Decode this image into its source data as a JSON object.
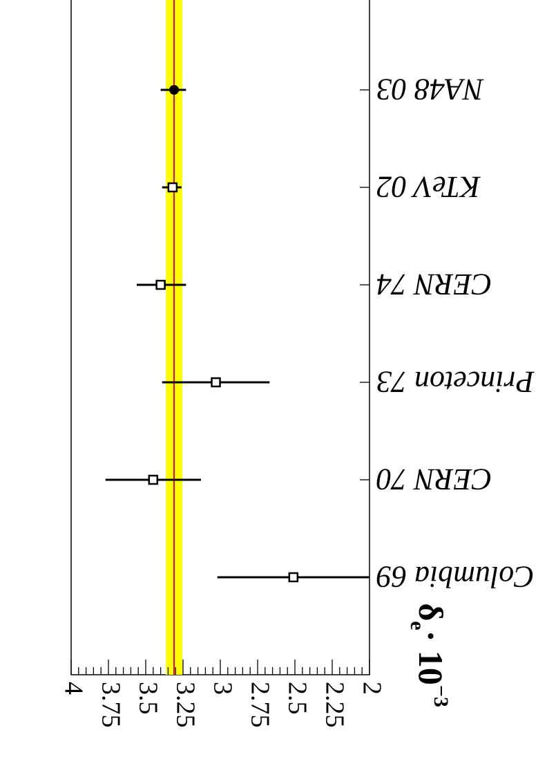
{
  "chart_data": {
    "type": "scatter",
    "orientation": "horizontal-error-bars, figure rotated 180 degrees",
    "xlabel": "δ",
    "xlabel_subscript": "e",
    "xlabel_multiplier": "· 10",
    "xlabel_exponent": "−3",
    "xlim": [
      2,
      4
    ],
    "x_ticks": [
      {
        "value": 4,
        "label": "4"
      },
      {
        "value": 3.75,
        "label": "3.75"
      },
      {
        "value": 3.5,
        "label": "3.5"
      },
      {
        "value": 3.25,
        "label": "3.25"
      },
      {
        "value": 3,
        "label": "3"
      },
      {
        "value": 2.75,
        "label": "2.75"
      },
      {
        "value": 2.5,
        "label": "2.5"
      },
      {
        "value": 2.25,
        "label": "2.25"
      },
      {
        "value": 2,
        "label": "2"
      }
    ],
    "average": {
      "value": 3.31,
      "band_low": 3.255,
      "band_high": 3.365,
      "band_color": "#ffff00",
      "line_color": "#e0004a"
    },
    "points": [
      {
        "label": "NA48 03",
        "value": 3.31,
        "err_low": 0.08,
        "err_high": 0.09,
        "marker": "filled-circle"
      },
      {
        "label": "KTeV 02",
        "value": 3.32,
        "err_low": 0.06,
        "err_high": 0.07,
        "marker": "open-square"
      },
      {
        "label": "CERN 74",
        "value": 3.4,
        "err_low": 0.17,
        "err_high": 0.16,
        "marker": "open-square"
      },
      {
        "label": "Princeton 73",
        "value": 3.03,
        "err_low": 0.36,
        "err_high": 0.36,
        "marker": "open-square"
      },
      {
        "label": "CERN 70",
        "value": 3.45,
        "err_low": 0.32,
        "err_high": 0.32,
        "marker": "open-square"
      },
      {
        "label": "Columbia 69",
        "value": 2.51,
        "err_low": 0.51,
        "err_high": 0.51,
        "marker": "open-square"
      }
    ],
    "grid": false,
    "legend": "none"
  }
}
